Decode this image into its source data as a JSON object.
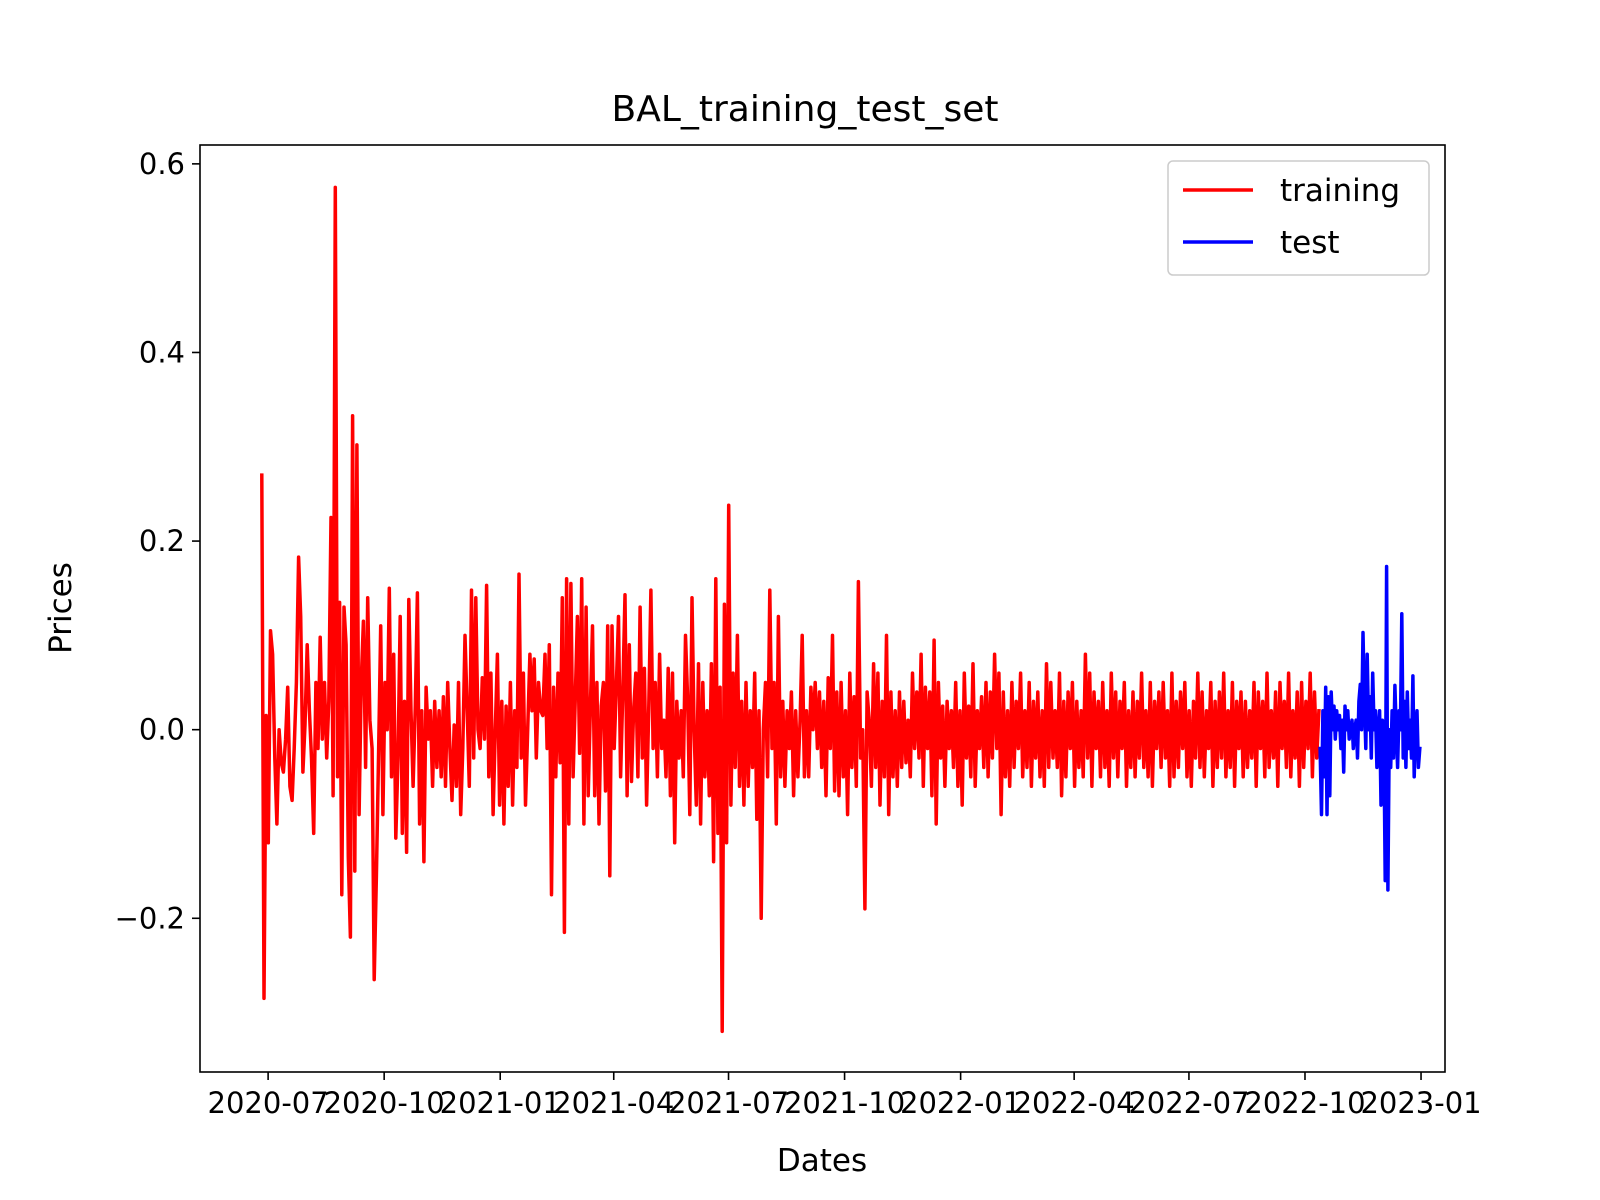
{
  "chart_data": {
    "type": "line",
    "title": "BAL_training_test_set",
    "xlabel": "Dates",
    "ylabel": "Prices",
    "xlim": [
      "2020-05-08",
      "2023-01-20"
    ],
    "ylim": [
      -0.363,
      0.62
    ],
    "x_ticks": [
      "2020-07",
      "2020-10",
      "2021-01",
      "2021-04",
      "2021-07",
      "2021-10",
      "2022-01",
      "2022-04",
      "2022-07",
      "2022-10",
      "2023-01"
    ],
    "y_ticks": [
      -0.2,
      0.0,
      0.2,
      0.4,
      0.6
    ],
    "y_tick_labels": [
      "−0.2",
      "0.0",
      "0.2",
      "0.4",
      "0.6"
    ],
    "grid": false,
    "legend_position": "top-right",
    "series": [
      {
        "name": "training",
        "color": "#ff0000",
        "x_start": "2020-06-26",
        "x_end": "2022-10-12",
        "values": [
          0.27,
          -0.285,
          0.015,
          -0.12,
          0.105,
          0.08,
          -0.03,
          -0.1,
          0.0,
          -0.035,
          -0.045,
          -0.01,
          0.045,
          -0.06,
          -0.075,
          -0.02,
          0.05,
          0.183,
          0.12,
          -0.045,
          0.005,
          0.09,
          0.02,
          -0.03,
          -0.11,
          0.05,
          -0.02,
          0.098,
          -0.01,
          0.05,
          -0.03,
          0.03,
          0.225,
          -0.07,
          0.575,
          -0.05,
          0.135,
          -0.175,
          0.13,
          0.09,
          -0.135,
          -0.22,
          0.333,
          -0.15,
          0.302,
          -0.09,
          0.05,
          0.115,
          -0.04,
          0.14,
          0.01,
          -0.02,
          -0.265,
          -0.155,
          -0.03,
          0.11,
          -0.09,
          0.05,
          0.0,
          0.15,
          -0.05,
          0.08,
          -0.115,
          -0.03,
          0.12,
          -0.11,
          0.03,
          -0.13,
          0.138,
          0.02,
          -0.06,
          0.025,
          0.145,
          -0.1,
          0.02,
          -0.14,
          0.045,
          -0.01,
          0.02,
          -0.06,
          0.03,
          -0.04,
          0.02,
          -0.05,
          0.035,
          -0.06,
          0.05,
          -0.02,
          -0.075,
          0.005,
          -0.06,
          0.05,
          -0.09,
          -0.02,
          0.1,
          0.02,
          -0.06,
          0.148,
          -0.03,
          0.14,
          0.0,
          -0.02,
          0.055,
          -0.01,
          0.153,
          -0.05,
          0.06,
          -0.09,
          0.0,
          0.08,
          -0.08,
          0.03,
          -0.1,
          0.025,
          -0.06,
          0.05,
          -0.08,
          0.02,
          -0.04,
          0.165,
          -0.03,
          0.06,
          -0.08,
          0.0,
          0.08,
          0.02,
          0.075,
          -0.03,
          0.05,
          0.02,
          0.015,
          0.08,
          -0.02,
          0.09,
          -0.175,
          0.045,
          -0.05,
          0.06,
          -0.035,
          0.14,
          -0.215,
          0.16,
          -0.1,
          0.155,
          -0.05,
          0.03,
          0.12,
          -0.025,
          0.16,
          -0.1,
          0.13,
          -0.07,
          0.025,
          0.11,
          -0.07,
          0.05,
          -0.1,
          0.025,
          0.05,
          -0.065,
          0.11,
          -0.155,
          0.11,
          -0.02,
          0.045,
          0.12,
          -0.05,
          0.04,
          0.143,
          -0.07,
          0.09,
          -0.055,
          0.02,
          0.06,
          -0.05,
          0.13,
          -0.03,
          0.065,
          -0.08,
          0.02,
          0.148,
          -0.02,
          0.05,
          -0.05,
          0.08,
          -0.02,
          0.01,
          -0.05,
          0.065,
          -0.07,
          0.06,
          -0.12,
          0.03,
          -0.03,
          0.02,
          -0.05,
          0.1,
          0.03,
          -0.09,
          0.14,
          0.0,
          -0.08,
          0.07,
          -0.1,
          0.05,
          -0.05,
          0.02,
          -0.07,
          0.07,
          -0.14,
          0.16,
          -0.11,
          0.045,
          -0.32,
          0.133,
          -0.12,
          0.238,
          -0.08,
          0.06,
          -0.04,
          0.1,
          -0.06,
          0.03,
          -0.08,
          0.05,
          -0.06,
          0.02,
          -0.04,
          0.06,
          -0.095,
          0.02,
          -0.2,
          0.0,
          0.05,
          -0.05,
          0.148,
          -0.02,
          0.05,
          -0.1,
          0.12,
          -0.05,
          0.03,
          -0.06,
          0.02,
          -0.02,
          0.04,
          -0.07,
          0.02,
          -0.05,
          0.01,
          0.1,
          -0.05,
          0.02,
          -0.05,
          0.045,
          0.0,
          0.05,
          -0.02,
          0.04,
          -0.04,
          0.03,
          -0.07,
          0.055,
          -0.02,
          0.1,
          -0.065,
          0.04,
          -0.07,
          0.05,
          -0.05,
          0.02,
          -0.09,
          0.06,
          -0.04,
          0.035,
          -0.06,
          0.157,
          -0.03,
          0.0,
          -0.19,
          0.04,
          0.01,
          -0.06,
          0.07,
          -0.04,
          0.06,
          -0.08,
          0.03,
          -0.05,
          0.1,
          -0.09,
          0.04,
          -0.05,
          0.02,
          -0.06,
          0.04,
          -0.04,
          0.03,
          -0.035,
          0.01,
          -0.05,
          0.06,
          -0.02,
          0.04,
          -0.03,
          0.08,
          -0.06,
          0.045,
          -0.02,
          0.04,
          -0.07,
          0.095,
          -0.1,
          0.05,
          -0.03,
          0.025,
          -0.06,
          0.03,
          -0.02,
          0.02,
          -0.04,
          0.05,
          -0.06,
          0.02,
          -0.08,
          0.06,
          -0.03,
          0.025,
          -0.05,
          0.07,
          -0.06,
          0.02,
          -0.02,
          0.035,
          -0.04,
          0.05,
          -0.05,
          0.04,
          -0.03,
          0.08,
          -0.02,
          0.06,
          -0.09,
          0.04,
          -0.05,
          0.02,
          -0.06,
          0.05,
          -0.04,
          0.03,
          -0.02,
          0.06,
          -0.05,
          0.02,
          -0.04,
          0.05,
          -0.06,
          0.03,
          -0.03,
          0.04,
          -0.05,
          0.02,
          -0.06,
          0.07,
          -0.04,
          0.05,
          -0.03,
          0.02,
          -0.04,
          0.06,
          -0.07,
          0.03,
          -0.05,
          0.04,
          -0.02,
          0.05,
          -0.06,
          0.03,
          -0.04,
          0.02,
          -0.05,
          0.08,
          -0.03,
          0.06,
          -0.06,
          0.04,
          -0.02,
          0.03,
          -0.05,
          0.05,
          -0.04,
          0.02,
          -0.06,
          0.06,
          -0.03,
          0.04,
          -0.05,
          0.03,
          -0.02,
          0.05,
          -0.06,
          0.02,
          -0.04,
          0.04,
          -0.05,
          0.03,
          -0.03,
          0.06,
          -0.04,
          0.02,
          -0.05,
          0.05,
          -0.06,
          0.03,
          -0.02,
          0.04,
          -0.04,
          0.05,
          -0.03,
          0.02,
          -0.06,
          0.06,
          -0.05,
          0.03,
          -0.04,
          0.04,
          -0.02,
          0.05,
          -0.05,
          0.02,
          -0.06,
          0.03,
          -0.03,
          0.06,
          -0.04,
          0.04,
          -0.05,
          0.02,
          -0.02,
          0.05,
          -0.06,
          0.03,
          -0.04,
          0.04,
          -0.03,
          0.06,
          -0.05,
          0.02,
          -0.04,
          0.05,
          -0.06,
          0.03,
          -0.02,
          0.04,
          -0.05,
          0.03,
          -0.04,
          0.02,
          -0.03,
          0.05,
          -0.06,
          0.04,
          -0.02,
          0.03,
          -0.05,
          0.06,
          -0.04,
          0.02,
          -0.03,
          0.04,
          -0.06,
          0.05,
          -0.02,
          0.03,
          -0.04,
          0.06,
          -0.05,
          0.02,
          -0.03,
          0.04,
          -0.06,
          0.05,
          -0.04,
          0.03,
          -0.02,
          0.06,
          -0.05,
          0.04,
          -0.03,
          0.02
        ]
      },
      {
        "name": "test",
        "color": "#0000ff",
        "x_start": "2022-10-13",
        "x_end": "2022-12-31",
        "values": [
          -0.02,
          -0.09,
          0.02,
          -0.05,
          0.045,
          -0.09,
          0.035,
          -0.07,
          0.04,
          0.0,
          0.025,
          -0.01,
          0.02,
          0.0,
          0.015,
          -0.02,
          0.01,
          -0.045,
          0.025,
          0.0,
          0.02,
          -0.01,
          0.0,
          0.01,
          -0.02,
          0.0,
          0.01,
          -0.03,
          0.03,
          0.048,
          0.0,
          0.103,
          0.03,
          -0.02,
          0.08,
          0.0,
          0.035,
          -0.03,
          0.06,
          0.0,
          0.02,
          -0.04,
          0.0,
          0.02,
          -0.08,
          0.01,
          0.0,
          -0.16,
          0.173,
          -0.17,
          0.0,
          -0.04,
          0.02,
          -0.03,
          0.047,
          0.0,
          -0.04,
          0.02,
          0.0,
          0.123,
          -0.03,
          0.03,
          -0.04,
          0.04,
          -0.02,
          0.01,
          -0.03,
          0.057,
          -0.05,
          0.0,
          0.02,
          -0.04,
          -0.02
        ]
      }
    ]
  }
}
